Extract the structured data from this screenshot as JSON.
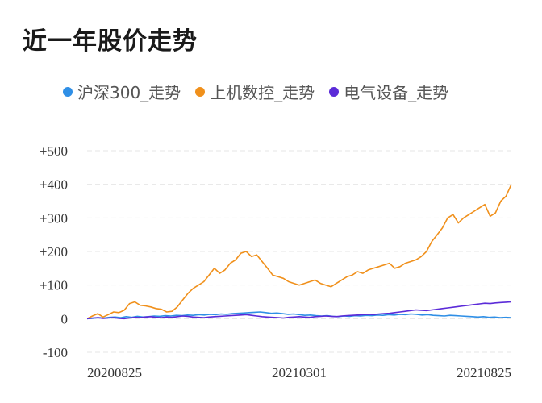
{
  "title": "近一年股价走势",
  "chart_data": {
    "type": "line",
    "x_tick_labels": [
      "20200825",
      "20210301",
      "20210825"
    ],
    "y_tick_labels": [
      "+500",
      "+400",
      "+300",
      "+200",
      "+100",
      "0",
      "-100"
    ],
    "y_ticks": [
      500,
      400,
      300,
      200,
      100,
      0,
      -100
    ],
    "ylim": [
      -100,
      500
    ],
    "grid": true,
    "legend_position": "top",
    "series": [
      {
        "name": "沪深300_走势",
        "color": "#2f8fe6",
        "values": [
          0,
          1,
          3,
          2,
          4,
          5,
          3,
          6,
          4,
          7,
          5,
          6,
          8,
          7,
          9,
          8,
          10,
          9,
          11,
          10,
          12,
          11,
          13,
          12,
          14,
          13,
          15,
          16,
          17,
          18,
          19,
          20,
          18,
          16,
          17,
          15,
          13,
          14,
          12,
          10,
          11,
          9,
          8,
          9,
          7,
          6,
          8,
          7,
          9,
          8,
          10,
          9,
          11,
          10,
          12,
          11,
          13,
          12,
          14,
          13,
          11,
          12,
          10,
          9,
          8,
          10,
          9,
          8,
          7,
          6,
          5,
          6,
          4,
          5,
          3,
          4,
          3
        ]
      },
      {
        "name": "上机数控_走势",
        "color": "#f0901b",
        "values": [
          0,
          8,
          15,
          5,
          12,
          20,
          18,
          25,
          45,
          50,
          40,
          38,
          35,
          30,
          28,
          20,
          22,
          35,
          55,
          75,
          90,
          100,
          110,
          130,
          150,
          135,
          145,
          165,
          175,
          195,
          200,
          185,
          190,
          170,
          150,
          130,
          125,
          120,
          110,
          105,
          100,
          105,
          110,
          115,
          105,
          100,
          95,
          105,
          115,
          125,
          130,
          140,
          135,
          145,
          150,
          155,
          160,
          165,
          150,
          155,
          165,
          170,
          175,
          185,
          200,
          230,
          250,
          270,
          300,
          310,
          285,
          300,
          310,
          320,
          330,
          340,
          305,
          315,
          350,
          365,
          400
        ]
      },
      {
        "name": "电气设备_走势",
        "color": "#5b2bd8",
        "values": [
          0,
          2,
          3,
          1,
          2,
          3,
          1,
          0,
          2,
          4,
          3,
          5,
          6,
          4,
          3,
          5,
          4,
          6,
          8,
          7,
          5,
          4,
          3,
          5,
          6,
          7,
          8,
          9,
          10,
          11,
          12,
          10,
          8,
          6,
          5,
          4,
          3,
          2,
          4,
          5,
          6,
          5,
          4,
          6,
          7,
          8,
          7,
          6,
          8,
          9,
          10,
          11,
          12,
          13,
          12,
          14,
          15,
          16,
          18,
          20,
          22,
          24,
          26,
          25,
          24,
          26,
          28,
          30,
          32,
          34,
          36,
          38,
          40,
          42,
          44,
          46,
          45,
          47,
          48,
          49,
          50
        ]
      }
    ]
  }
}
